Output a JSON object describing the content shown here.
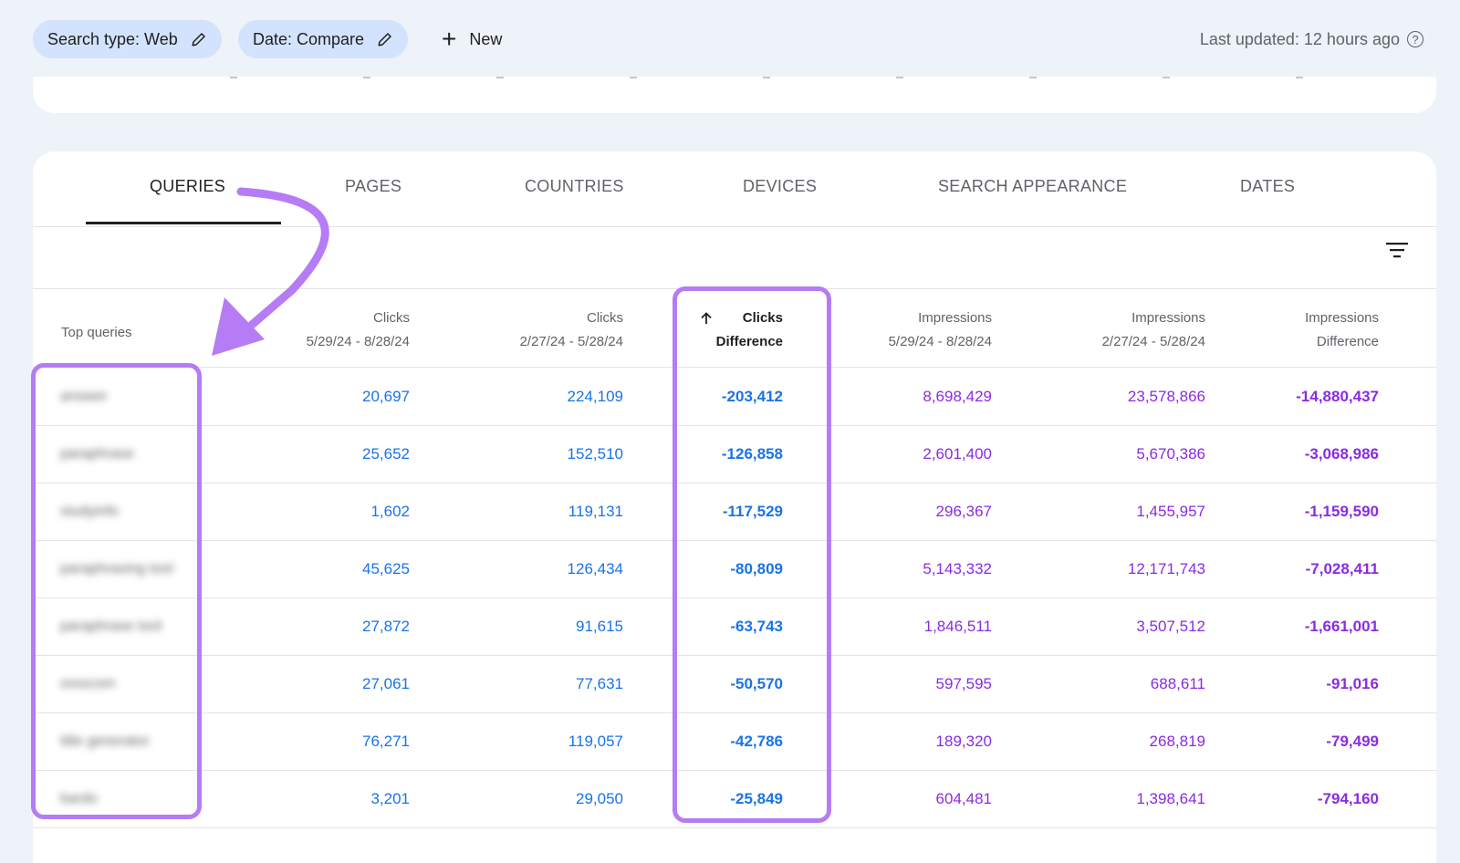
{
  "filters": [
    {
      "label": "Search type: Web",
      "icon": "pencil-icon"
    },
    {
      "label": "Date: Compare",
      "icon": "pencil-icon"
    }
  ],
  "new_button": {
    "label": "New",
    "icon": "plus-icon"
  },
  "last_updated": "Last updated: 12 hours ago",
  "tabs": [
    {
      "label": "QUERIES",
      "active": true
    },
    {
      "label": "PAGES",
      "active": false
    },
    {
      "label": "COUNTRIES",
      "active": false
    },
    {
      "label": "DEVICES",
      "active": false
    },
    {
      "label": "SEARCH APPEARANCE",
      "active": false
    },
    {
      "label": "DATES",
      "active": false
    }
  ],
  "table": {
    "query_header": "Top queries",
    "columns": [
      {
        "line1": "Clicks",
        "line2": "5/29/24 - 8/28/24"
      },
      {
        "line1": "Clicks",
        "line2": "2/27/24 - 5/28/24"
      },
      {
        "line1": "Clicks",
        "line2": "Difference",
        "sorted": true,
        "sort_icon": "arrow-up-icon"
      },
      {
        "line1": "Impressions",
        "line2": "5/29/24 - 8/28/24"
      },
      {
        "line1": "Impressions",
        "line2": "2/27/24 - 5/28/24"
      },
      {
        "line1": "Impressions",
        "line2": "Difference"
      }
    ],
    "rows": [
      {
        "query": "answer",
        "clicks_cur": "20,697",
        "clicks_prev": "224,109",
        "clicks_diff": "-203,412",
        "impr_cur": "8,698,429",
        "impr_prev": "23,578,866",
        "impr_diff": "-14,880,437"
      },
      {
        "query": "paraphrase",
        "clicks_cur": "25,652",
        "clicks_prev": "152,510",
        "clicks_diff": "-126,858",
        "impr_cur": "2,601,400",
        "impr_prev": "5,670,386",
        "impr_diff": "-3,068,986"
      },
      {
        "query": "studyinfo",
        "clicks_cur": "1,602",
        "clicks_prev": "119,131",
        "clicks_diff": "-117,529",
        "impr_cur": "296,367",
        "impr_prev": "1,455,957",
        "impr_diff": "-1,159,590"
      },
      {
        "query": "paraphrasing tool",
        "clicks_cur": "45,625",
        "clicks_prev": "126,434",
        "clicks_diff": "-80,809",
        "impr_cur": "5,143,332",
        "impr_prev": "12,171,743",
        "impr_diff": "-7,028,411"
      },
      {
        "query": "paraphrase tool",
        "clicks_cur": "27,872",
        "clicks_prev": "91,615",
        "clicks_diff": "-63,743",
        "impr_cur": "1,846,511",
        "impr_prev": "3,507,512",
        "impr_diff": "-1,661,001"
      },
      {
        "query": "srescom",
        "clicks_cur": "27,061",
        "clicks_prev": "77,631",
        "clicks_diff": "-50,570",
        "impr_cur": "597,595",
        "impr_prev": "688,611",
        "impr_diff": "-91,016"
      },
      {
        "query": "title generator",
        "clicks_cur": "76,271",
        "clicks_prev": "119,057",
        "clicks_diff": "-42,786",
        "impr_cur": "189,320",
        "impr_prev": "268,819",
        "impr_diff": "-79,499"
      },
      {
        "query": "bardo",
        "clicks_cur": "3,201",
        "clicks_prev": "29,050",
        "clicks_diff": "-25,849",
        "impr_cur": "604,481",
        "impr_prev": "1,398,641",
        "impr_diff": "-794,160"
      }
    ]
  },
  "colors": {
    "clicks": "#1a73e8",
    "impressions": "#8a2be2",
    "annotation": "#b57cf5",
    "chip_bg": "#d3e3fd",
    "page_bg": "#eef2f9"
  }
}
